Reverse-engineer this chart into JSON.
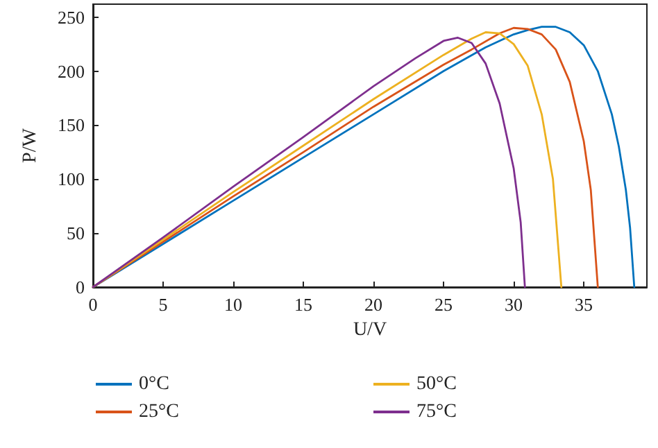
{
  "chart_data": {
    "type": "line",
    "xlabel": "U/V",
    "ylabel": "P/W",
    "xlim": [
      0,
      39.5
    ],
    "ylim": [
      0,
      262
    ],
    "xticks": [
      0,
      5,
      10,
      15,
      20,
      25,
      30,
      35
    ],
    "yticks": [
      0,
      50,
      100,
      150,
      200,
      250
    ],
    "grid": false,
    "legend": "bottom",
    "marker": "none",
    "line_style": "solid",
    "series": [
      {
        "name": "0°C",
        "color": "#0072bd",
        "x": [
          0,
          5,
          10,
          15,
          20,
          25,
          28,
          30,
          31,
          32,
          33,
          34,
          35,
          36,
          37,
          37.5,
          38,
          38.3,
          38.6
        ],
        "values": [
          0,
          40,
          80,
          120,
          160,
          200,
          222,
          234,
          238,
          241,
          241,
          236,
          224,
          200,
          160,
          130,
          90,
          55,
          0
        ]
      },
      {
        "name": "25°C",
        "color": "#d95319",
        "x": [
          0,
          5,
          10,
          15,
          20,
          25,
          27,
          29,
          30,
          31,
          32,
          33,
          34,
          35,
          35.5,
          36
        ],
        "values": [
          0,
          42,
          84,
          125,
          167,
          206,
          220,
          235,
          240,
          239,
          234,
          220,
          190,
          135,
          90,
          0
        ]
      },
      {
        "name": "50°C",
        "color": "#edb120",
        "x": [
          0,
          5,
          10,
          15,
          20,
          25,
          27,
          28,
          29,
          30,
          31,
          32,
          32.8,
          33.4
        ],
        "values": [
          0,
          44,
          88,
          131,
          174,
          215,
          230,
          236,
          235,
          225,
          205,
          160,
          100,
          0
        ]
      },
      {
        "name": "75°C",
        "color": "#7e2f8e",
        "x": [
          0,
          5,
          10,
          15,
          20,
          23,
          25,
          26,
          27,
          28,
          29,
          30,
          30.5,
          30.8
        ],
        "values": [
          0,
          46,
          93,
          139,
          186,
          212,
          228,
          231,
          226,
          207,
          170,
          110,
          60,
          0
        ]
      }
    ]
  }
}
